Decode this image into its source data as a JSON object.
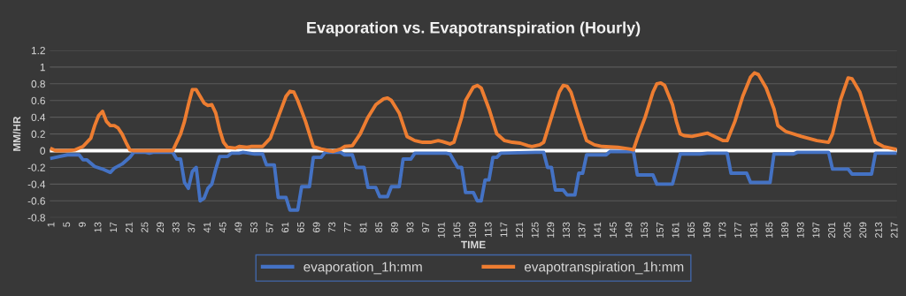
{
  "chart_data": {
    "type": "line",
    "title": "Evaporation vs. Evapotranspiration (Hourly)",
    "xlabel": "TIME",
    "ylabel": "MM/HR",
    "xlim": [
      0.5,
      217.5
    ],
    "xticks": [
      1,
      5,
      9,
      13,
      17,
      21,
      25,
      29,
      33,
      37,
      41,
      45,
      49,
      53,
      57,
      61,
      65,
      69,
      73,
      77,
      81,
      85,
      89,
      93,
      97,
      101,
      105,
      109,
      113,
      117,
      121,
      125,
      129,
      133,
      137,
      141,
      145,
      149,
      153,
      157,
      161,
      165,
      169,
      173,
      177,
      181,
      185,
      189,
      193,
      197,
      201,
      205,
      209,
      213,
      217
    ],
    "ylim": [
      -0.8,
      1.2
    ],
    "yticks": [
      -0.8,
      -0.6,
      -0.4,
      -0.2,
      0,
      0.2,
      0.4,
      0.6,
      0.8,
      1,
      1.2
    ],
    "grid": "y",
    "legend": "bottom",
    "line_style": "solid",
    "marker": "none",
    "ref_lines": [
      {
        "axis": "y",
        "value": 0,
        "color": "#ffffff"
      }
    ],
    "series": [
      {
        "name": "evaporation_1h:mm",
        "color": "#4472c4",
        "x": [
          1,
          3,
          5,
          8,
          9,
          10,
          11,
          12,
          14,
          15,
          16,
          17,
          19,
          21,
          22,
          25,
          26,
          27,
          32,
          33,
          34,
          35,
          36,
          37,
          38,
          39,
          40,
          41,
          42,
          43,
          44,
          46,
          47,
          48,
          49,
          50,
          53,
          55,
          56,
          58,
          59,
          61,
          62,
          64,
          65,
          67,
          68,
          70,
          71,
          75,
          76,
          78,
          79,
          81,
          82,
          84,
          85,
          87,
          88,
          90,
          91,
          93,
          94,
          102,
          103,
          105,
          106,
          107,
          109,
          110,
          111,
          112,
          113,
          114,
          115,
          116,
          125,
          127,
          128,
          129,
          130,
          132,
          133,
          135,
          136,
          137,
          138,
          143,
          144,
          150,
          151,
          155,
          156,
          160,
          162,
          167,
          169,
          174,
          175,
          179,
          180,
          185,
          186,
          191,
          192,
          200,
          201,
          205,
          206,
          211,
          212,
          217
        ],
        "values": [
          -0.09,
          -0.07,
          -0.05,
          -0.05,
          -0.11,
          -0.11,
          -0.15,
          -0.19,
          -0.22,
          -0.24,
          -0.26,
          -0.21,
          -0.16,
          -0.08,
          -0.02,
          -0.02,
          -0.03,
          -0.02,
          -0.02,
          -0.1,
          -0.1,
          -0.38,
          -0.45,
          -0.25,
          -0.2,
          -0.6,
          -0.57,
          -0.45,
          -0.4,
          -0.22,
          -0.07,
          -0.07,
          -0.03,
          -0.03,
          -0.03,
          -0.02,
          -0.04,
          -0.04,
          -0.17,
          -0.17,
          -0.56,
          -0.56,
          -0.71,
          -0.71,
          -0.43,
          -0.43,
          -0.08,
          -0.08,
          -0.02,
          -0.02,
          -0.05,
          -0.05,
          -0.2,
          -0.2,
          -0.44,
          -0.44,
          -0.55,
          -0.55,
          -0.43,
          -0.43,
          -0.1,
          -0.1,
          -0.03,
          -0.03,
          -0.04,
          -0.2,
          -0.2,
          -0.5,
          -0.5,
          -0.6,
          -0.6,
          -0.35,
          -0.35,
          -0.08,
          -0.08,
          -0.03,
          -0.02,
          -0.02,
          -0.2,
          -0.2,
          -0.47,
          -0.47,
          -0.53,
          -0.53,
          -0.27,
          -0.27,
          -0.05,
          -0.05,
          -0.01,
          -0.01,
          -0.29,
          -0.29,
          -0.4,
          -0.4,
          -0.04,
          -0.04,
          -0.03,
          -0.03,
          -0.27,
          -0.27,
          -0.38,
          -0.38,
          -0.04,
          -0.04,
          -0.02,
          -0.02,
          -0.22,
          -0.22,
          -0.28,
          -0.28,
          -0.03,
          -0.03
        ]
      },
      {
        "name": "evapotranspiration_1h:mm",
        "color": "#ed7d31",
        "x": [
          1,
          2,
          5,
          7,
          9,
          11,
          12,
          13,
          14,
          15,
          16,
          17,
          18,
          19,
          20,
          21,
          22,
          32,
          34,
          35,
          36,
          37,
          38,
          39,
          40,
          41,
          42,
          43,
          44,
          45,
          46,
          48,
          49,
          51,
          52,
          55,
          57,
          59,
          61,
          62,
          63,
          64,
          66,
          68,
          70,
          72,
          73,
          75,
          76,
          78,
          80,
          82,
          84,
          86,
          87,
          88,
          90,
          92,
          94,
          96,
          98,
          100,
          101,
          103,
          104,
          106,
          107,
          109,
          110,
          111,
          113,
          115,
          117,
          119,
          121,
          123,
          124,
          126,
          127,
          129,
          131,
          132,
          133,
          134,
          136,
          138,
          140,
          142,
          146,
          149,
          150,
          151,
          153,
          155,
          156,
          157,
          158,
          160,
          161,
          162,
          163,
          165,
          169,
          173,
          174,
          176,
          178,
          180,
          181,
          182,
          184,
          186,
          187,
          189,
          193,
          197,
          200,
          201,
          203,
          205,
          206,
          208,
          210,
          212,
          214,
          217
        ],
        "values": [
          0.02,
          0,
          0,
          0.01,
          0.05,
          0.15,
          0.3,
          0.42,
          0.47,
          0.35,
          0.3,
          0.3,
          0.27,
          0.2,
          0.1,
          0.01,
          0,
          0,
          0.2,
          0.35,
          0.55,
          0.73,
          0.73,
          0.65,
          0.57,
          0.54,
          0.55,
          0.45,
          0.25,
          0.1,
          0.04,
          0.03,
          0.05,
          0.04,
          0.05,
          0.05,
          0.15,
          0.4,
          0.65,
          0.71,
          0.7,
          0.6,
          0.35,
          0.05,
          0.02,
          0,
          -0.01,
          0.02,
          0.05,
          0.06,
          0.2,
          0.4,
          0.55,
          0.62,
          0.63,
          0.6,
          0.45,
          0.17,
          0.12,
          0.1,
          0.1,
          0.12,
          0.11,
          0.08,
          0.1,
          0.4,
          0.6,
          0.76,
          0.78,
          0.75,
          0.5,
          0.2,
          0.12,
          0.1,
          0.09,
          0.06,
          0.05,
          0.07,
          0.1,
          0.4,
          0.7,
          0.78,
          0.77,
          0.7,
          0.4,
          0.12,
          0.07,
          0.05,
          0.04,
          0.02,
          0.01,
          0.15,
          0.4,
          0.7,
          0.8,
          0.81,
          0.78,
          0.55,
          0.35,
          0.2,
          0.18,
          0.17,
          0.21,
          0.12,
          0.12,
          0.35,
          0.65,
          0.88,
          0.93,
          0.91,
          0.75,
          0.5,
          0.3,
          0.23,
          0.17,
          0.12,
          0.1,
          0.2,
          0.6,
          0.87,
          0.86,
          0.7,
          0.4,
          0.1,
          0.05,
          0.02
        ]
      }
    ]
  }
}
